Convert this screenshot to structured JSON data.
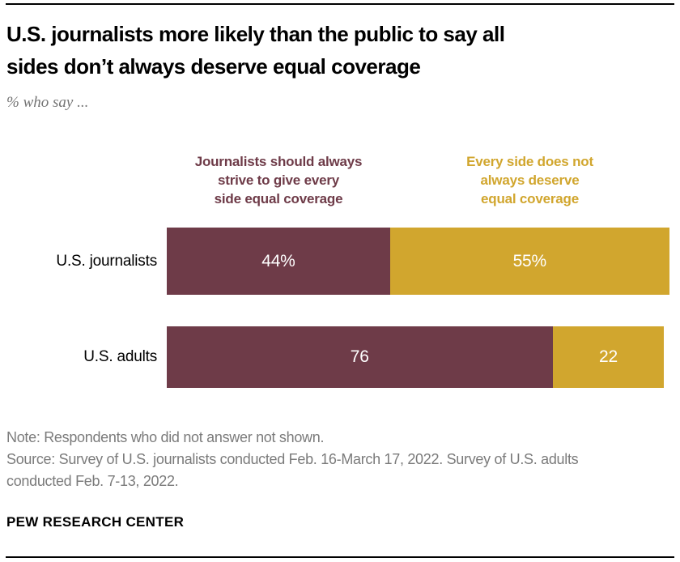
{
  "header": {
    "title": "U.S. journalists more likely than the public to say all\nsides don’t always deserve equal coverage",
    "subtitle": "% who say ..."
  },
  "chart_data": {
    "type": "bar",
    "orientation": "horizontal",
    "stacked": true,
    "title": "U.S. journalists more likely than the public to say all sides don’t always deserve equal coverage",
    "subtitle": "% who say ...",
    "categories": [
      "U.S. journalists",
      "U.S. adults"
    ],
    "series": [
      {
        "name": "Journalists should always strive to give every side equal coverage",
        "header_label": "Journalists should always\nstrive to give every\nside equal coverage",
        "color": "#6e3b48",
        "values": [
          44,
          76
        ],
        "value_labels": [
          "44%",
          "76"
        ]
      },
      {
        "name": "Every side does not always deserve equal coverage",
        "header_label": "Every side does not\nalways deserve\nequal coverage",
        "color": "#d1a62e",
        "values": [
          55,
          22
        ],
        "value_labels": [
          "55%",
          "22"
        ]
      }
    ],
    "xlim": [
      0,
      100
    ],
    "value_label_color": "#ffffff",
    "grid": false,
    "legend_position": "top"
  },
  "footer": {
    "note": "Note: Respondents who did not answer not shown.",
    "source": "Source: Survey of U.S. journalists conducted Feb. 16-March 17, 2022. Survey of U.S. adults\nconducted Feb. 7-13, 2022.",
    "brand": "PEW RESEARCH CENTER"
  }
}
